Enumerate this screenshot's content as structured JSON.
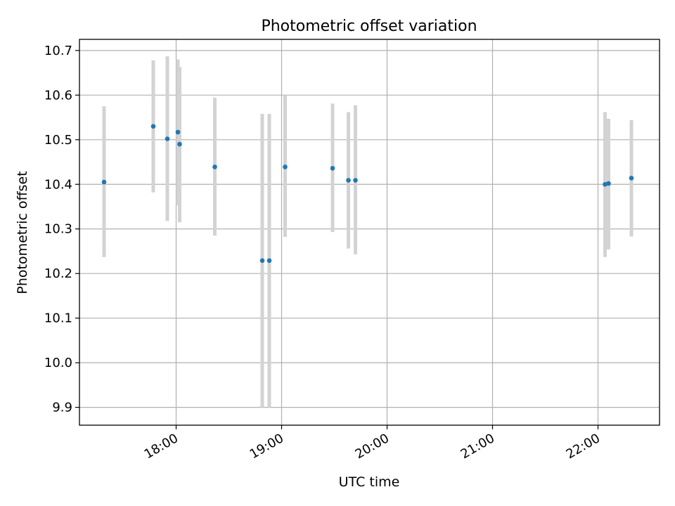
{
  "chart_data": {
    "type": "scatter",
    "title": "Photometric offset variation",
    "xlabel": "UTC time",
    "ylabel": "Photometric offset",
    "ylim": [
      9.86,
      10.725
    ],
    "xlim": [
      "17:05",
      "22:35"
    ],
    "xticks": [
      "18:00",
      "19:00",
      "20:00",
      "21:00",
      "22:00"
    ],
    "yticks": [
      "9.9",
      "10.0",
      "10.1",
      "10.2",
      "10.3",
      "10.4",
      "10.5",
      "10.6",
      "10.7"
    ],
    "grid": true,
    "errorbar_color": "#d3d3d3",
    "marker_color": "#1f77b4",
    "points": [
      {
        "x": "17:19",
        "y": 10.405,
        "ylow": 10.237,
        "yhigh": 10.575
      },
      {
        "x": "17:47",
        "y": 10.53,
        "ylow": 10.382,
        "yhigh": 10.678
      },
      {
        "x": "17:55",
        "y": 10.502,
        "ylow": 10.318,
        "yhigh": 10.687
      },
      {
        "x": "18:01",
        "y": 10.517,
        "ylow": 10.353,
        "yhigh": 10.68
      },
      {
        "x": "18:02",
        "y": 10.49,
        "ylow": 10.315,
        "yhigh": 10.663
      },
      {
        "x": "18:22",
        "y": 10.439,
        "ylow": 10.285,
        "yhigh": 10.594
      },
      {
        "x": "18:49",
        "y": 10.229,
        "ylow": 9.9,
        "yhigh": 10.558
      },
      {
        "x": "18:53",
        "y": 10.229,
        "ylow": 9.9,
        "yhigh": 10.558
      },
      {
        "x": "19:02",
        "y": 10.439,
        "ylow": 10.282,
        "yhigh": 10.6
      },
      {
        "x": "19:29",
        "y": 10.436,
        "ylow": 10.293,
        "yhigh": 10.581
      },
      {
        "x": "19:38",
        "y": 10.409,
        "ylow": 10.256,
        "yhigh": 10.562
      },
      {
        "x": "19:42",
        "y": 10.409,
        "ylow": 10.243,
        "yhigh": 10.577
      },
      {
        "x": "22:04",
        "y": 10.4,
        "ylow": 10.237,
        "yhigh": 10.562
      },
      {
        "x": "22:06",
        "y": 10.402,
        "ylow": 10.254,
        "yhigh": 10.547
      },
      {
        "x": "22:19",
        "y": 10.414,
        "ylow": 10.283,
        "yhigh": 10.544
      }
    ]
  }
}
